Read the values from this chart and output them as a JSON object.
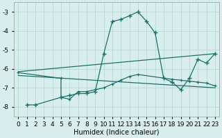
{
  "xlabel": "Humidex (Indice chaleur)",
  "bg_color": "#d8eeec",
  "grid_color": "#b8d8d4",
  "line_color": "#1a7068",
  "xlim": [
    -0.5,
    23.5
  ],
  "ylim": [
    -8.5,
    -2.5
  ],
  "yticks": [
    -8,
    -7,
    -6,
    -5,
    -4,
    -3
  ],
  "xticks": [
    0,
    1,
    2,
    3,
    4,
    5,
    6,
    7,
    8,
    9,
    10,
    11,
    12,
    13,
    14,
    15,
    16,
    17,
    18,
    19,
    20,
    21,
    22,
    23
  ],
  "curve_x": [
    1,
    2,
    5,
    6,
    7,
    8,
    9,
    10,
    11,
    12,
    13,
    14,
    15,
    16,
    17,
    18,
    19,
    20,
    21,
    22,
    23
  ],
  "curve_y": [
    -7.9,
    -7.9,
    -7.5,
    -7.4,
    -7.3,
    -7.3,
    -7.2,
    -5.2,
    -3.5,
    -3.4,
    -3.2,
    -3.0,
    -3.5,
    -4.1,
    -6.5,
    -6.7,
    -7.1,
    -6.5,
    -5.5,
    -5.7,
    -5.2
  ],
  "upper_line_x": [
    0,
    23
  ],
  "upper_line_y": [
    -6.15,
    -5.2
  ],
  "lower_line_x": [
    0,
    23
  ],
  "lower_line_y": [
    -6.35,
    -7.0
  ],
  "mid_line_x": [
    0,
    5,
    5,
    6,
    7,
    8,
    9,
    10,
    11,
    12,
    13,
    14,
    18,
    19,
    20,
    21,
    22,
    23
  ],
  "mid_line_y": [
    -6.2,
    -6.5,
    -7.5,
    -7.6,
    -7.2,
    -7.2,
    -7.1,
    -7.0,
    -6.8,
    -6.6,
    -6.4,
    -6.3,
    -6.55,
    -6.6,
    -6.65,
    -6.7,
    -6.75,
    -6.9
  ],
  "fontsize_label": 7,
  "tick_fontsize": 6.5
}
